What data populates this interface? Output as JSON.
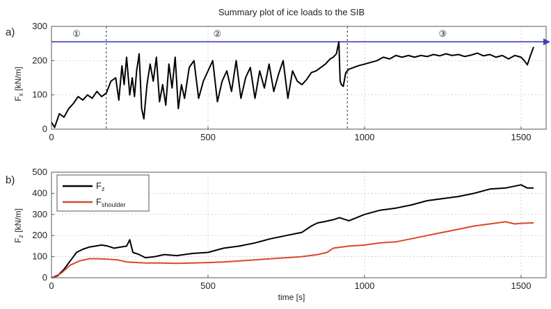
{
  "figure": {
    "title": "Summary plot of ice loads to the SIB"
  },
  "chart_data": [
    {
      "type": "line",
      "panel_label": "a)",
      "ylabel": "F",
      "ylabel_sub": "x",
      "yunit": " [kN/m]",
      "xlabel": "",
      "xlim": [
        0,
        1580
      ],
      "ylim": [
        0,
        300
      ],
      "xticks": [
        0,
        500,
        1000,
        1500
      ],
      "yticks": [
        0,
        100,
        200,
        300
      ],
      "grid": true,
      "phase_dividers": [
        175,
        945
      ],
      "phases": [
        {
          "label": "①",
          "x": 80
        },
        {
          "label": "②",
          "x": 530
        },
        {
          "label": "③",
          "x": 1250
        }
      ],
      "reference_line": {
        "y": 255,
        "color": "#3a3fbf"
      },
      "series": [
        {
          "color": "#000000",
          "x": [
            0,
            10,
            25,
            40,
            55,
            70,
            85,
            100,
            115,
            130,
            145,
            160,
            175,
            190,
            205,
            215,
            225,
            232,
            240,
            250,
            258,
            265,
            272,
            280,
            288,
            295,
            305,
            315,
            325,
            335,
            345,
            355,
            365,
            375,
            385,
            395,
            405,
            415,
            425,
            440,
            455,
            470,
            485,
            500,
            515,
            530,
            545,
            560,
            575,
            590,
            605,
            620,
            635,
            650,
            665,
            680,
            695,
            710,
            725,
            740,
            755,
            770,
            785,
            800,
            815,
            830,
            845,
            860,
            875,
            890,
            900,
            910,
            918,
            922,
            926,
            932,
            940,
            950,
            965,
            980,
            1000,
            1020,
            1040,
            1060,
            1080,
            1100,
            1120,
            1140,
            1160,
            1180,
            1200,
            1220,
            1240,
            1260,
            1280,
            1300,
            1320,
            1340,
            1360,
            1380,
            1400,
            1420,
            1440,
            1460,
            1480,
            1500,
            1510,
            1520,
            1530,
            1540
          ],
          "y": [
            20,
            5,
            45,
            35,
            60,
            75,
            95,
            85,
            100,
            90,
            110,
            95,
            105,
            140,
            150,
            85,
            185,
            130,
            210,
            100,
            150,
            95,
            170,
            220,
            60,
            30,
            130,
            190,
            140,
            210,
            80,
            130,
            70,
            190,
            120,
            210,
            60,
            130,
            90,
            180,
            200,
            90,
            140,
            170,
            200,
            80,
            140,
            170,
            110,
            200,
            90,
            150,
            180,
            90,
            170,
            120,
            190,
            110,
            160,
            200,
            90,
            170,
            140,
            130,
            145,
            165,
            170,
            180,
            190,
            205,
            210,
            220,
            255,
            140,
            130,
            125,
            165,
            175,
            180,
            185,
            190,
            195,
            200,
            210,
            205,
            215,
            210,
            215,
            210,
            215,
            212,
            218,
            214,
            220,
            215,
            218,
            212,
            216,
            222,
            214,
            218,
            210,
            215,
            205,
            215,
            210,
            200,
            188,
            215,
            240
          ]
        }
      ]
    },
    {
      "type": "line",
      "panel_label": "b)",
      "ylabel": "F",
      "ylabel_sub": "z",
      "yunit": " [kN/m]",
      "xlabel": "time [s]",
      "xlim": [
        0,
        1580
      ],
      "ylim": [
        0,
        500
      ],
      "xticks": [
        0,
        500,
        1000,
        1500
      ],
      "yticks": [
        0,
        100,
        200,
        300,
        400,
        500
      ],
      "grid": true,
      "legend_position": "top-left",
      "series": [
        {
          "name": "F",
          "name_sub": "z",
          "color": "#000000",
          "x": [
            0,
            20,
            40,
            60,
            80,
            100,
            120,
            140,
            160,
            180,
            200,
            220,
            240,
            250,
            260,
            280,
            300,
            330,
            360,
            400,
            450,
            500,
            550,
            600,
            650,
            700,
            750,
            800,
            830,
            850,
            870,
            900,
            920,
            950,
            1000,
            1050,
            1100,
            1150,
            1200,
            1250,
            1300,
            1350,
            1400,
            1450,
            1500,
            1520,
            1540
          ],
          "y": [
            0,
            10,
            40,
            80,
            120,
            135,
            145,
            150,
            155,
            150,
            140,
            145,
            150,
            180,
            120,
            110,
            95,
            100,
            110,
            105,
            115,
            120,
            140,
            150,
            165,
            185,
            200,
            215,
            245,
            260,
            265,
            275,
            285,
            270,
            300,
            320,
            330,
            345,
            365,
            375,
            385,
            400,
            420,
            425,
            440,
            425,
            425
          ]
        },
        {
          "name": "F",
          "name_sub": "shoulder",
          "color": "#d9472b",
          "x": [
            0,
            30,
            60,
            90,
            120,
            150,
            180,
            210,
            240,
            300,
            350,
            400,
            450,
            500,
            550,
            600,
            650,
            700,
            750,
            800,
            850,
            880,
            900,
            950,
            1000,
            1050,
            1100,
            1150,
            1200,
            1250,
            1300,
            1350,
            1400,
            1450,
            1480,
            1500,
            1540
          ],
          "y": [
            0,
            20,
            60,
            80,
            90,
            90,
            88,
            85,
            75,
            70,
            70,
            68,
            70,
            72,
            75,
            80,
            85,
            90,
            95,
            100,
            110,
            120,
            140,
            150,
            155,
            165,
            170,
            185,
            200,
            215,
            230,
            245,
            255,
            265,
            255,
            258,
            260
          ]
        }
      ]
    }
  ]
}
